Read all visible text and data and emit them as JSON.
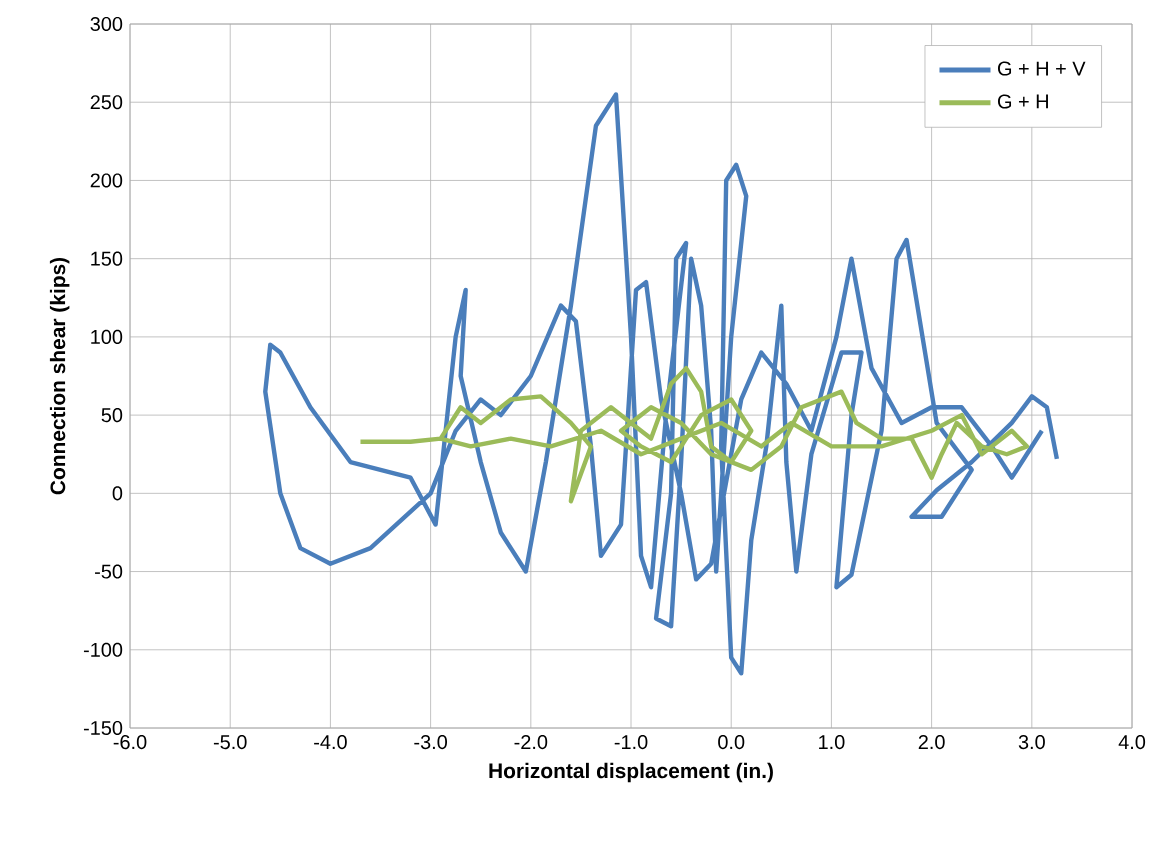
{
  "chart_data": {
    "type": "line",
    "xlabel": "Horizontal displacement (in.)",
    "ylabel": "Connection shear (kips)",
    "xlim": [
      -6,
      4
    ],
    "ylim": [
      -150,
      300
    ],
    "xticks": [
      {
        "value": -6,
        "label": "-6.0"
      },
      {
        "value": -5,
        "label": "-5.0"
      },
      {
        "value": -4,
        "label": "-4.0"
      },
      {
        "value": -3,
        "label": "-3.0"
      },
      {
        "value": -2,
        "label": "-2.0"
      },
      {
        "value": -1,
        "label": "-1.0"
      },
      {
        "value": 0,
        "label": "0.0"
      },
      {
        "value": 1,
        "label": "1.0"
      },
      {
        "value": 2,
        "label": "2.0"
      },
      {
        "value": 3,
        "label": "3.0"
      },
      {
        "value": 4,
        "label": "4.0"
      }
    ],
    "yticks": [
      -150,
      -100,
      -50,
      0,
      50,
      100,
      150,
      200,
      250,
      300
    ],
    "grid": true,
    "legend": "top right",
    "marker": "none",
    "line_style": "solid",
    "series": [
      {
        "name": "G + H + V",
        "color": "#4a7ebb",
        "x": [
          3.25,
          3.15,
          3.0,
          2.8,
          2.4,
          2.05,
          1.8,
          2.1,
          2.4,
          2.05,
          1.75,
          1.65,
          1.5,
          1.2,
          1.05,
          1.2,
          1.3,
          1.1,
          0.8,
          0.65,
          0.55,
          0.5,
          0.35,
          0.2,
          0.1,
          0.0,
          -0.1,
          -0.05,
          0.05,
          0.15,
          0.0,
          -0.15,
          -0.2,
          -0.3,
          -0.4,
          -0.5,
          -0.6,
          -0.75,
          -0.6,
          -0.55,
          -0.45,
          -0.65,
          -0.8,
          -0.9,
          -1.0,
          -1.15,
          -1.35,
          -1.6,
          -1.85,
          -2.05,
          -2.3,
          -2.5,
          -2.7,
          -2.65,
          -2.75,
          -2.9,
          -2.95,
          -3.2,
          -3.8,
          -4.2,
          -4.5,
          -4.6,
          -4.65,
          -4.5,
          -4.3,
          -4.0,
          -3.6,
          -3.0,
          -2.75,
          -2.5,
          -2.3,
          -2.0,
          -1.7,
          -1.55,
          -1.4,
          -1.3,
          -1.1,
          -0.95,
          -0.85,
          -0.7,
          -0.5,
          -0.35,
          -0.2,
          0.1,
          0.3,
          0.55,
          0.8,
          1.05,
          1.2,
          1.4,
          1.7,
          2.0,
          2.3,
          2.6,
          2.8,
          3.1
        ],
        "values": [
          22,
          55,
          62,
          45,
          20,
          2,
          -15,
          -15,
          15,
          45,
          162,
          150,
          40,
          -52,
          -60,
          50,
          90,
          90,
          25,
          -50,
          20,
          120,
          30,
          -30,
          -115,
          -105,
          30,
          200,
          210,
          190,
          100,
          -50,
          40,
          120,
          150,
          20,
          -85,
          -80,
          0,
          150,
          160,
          50,
          -60,
          -40,
          100,
          255,
          235,
          120,
          20,
          -50,
          -25,
          20,
          75,
          130,
          100,
          10,
          -20,
          10,
          20,
          55,
          90,
          95,
          65,
          0,
          -35,
          -45,
          -35,
          0,
          40,
          60,
          50,
          75,
          120,
          110,
          30,
          -40,
          -20,
          130,
          135,
          60,
          0,
          -55,
          -45,
          60,
          90,
          70,
          40,
          100,
          150,
          80,
          45,
          55,
          55,
          30,
          10,
          40
        ]
      },
      {
        "name": "G + H",
        "color": "#9bbb59",
        "x": [
          -3.7,
          -3.2,
          -2.9,
          -2.7,
          -2.5,
          -2.2,
          -1.9,
          -1.6,
          -1.4,
          -1.6,
          -1.5,
          -1.2,
          -1.0,
          -0.8,
          -0.6,
          -0.45,
          -0.3,
          -0.2,
          0.0,
          0.2,
          0.0,
          -0.3,
          -0.6,
          -0.9,
          -1.1,
          -0.8,
          -0.5,
          -0.2,
          0.2,
          0.5,
          0.7,
          0.9,
          1.1,
          1.25,
          1.5,
          1.8,
          2.0,
          2.1,
          2.25,
          2.5,
          2.75,
          2.95,
          2.8,
          2.5,
          2.3,
          2.0,
          1.5,
          1.0,
          0.6,
          0.3,
          -0.1,
          -0.5,
          -0.9,
          -1.3,
          -1.8,
          -2.2,
          -2.6,
          -2.9
        ],
        "values": [
          33,
          33,
          35,
          55,
          45,
          60,
          62,
          45,
          30,
          -5,
          40,
          55,
          45,
          35,
          70,
          80,
          65,
          30,
          20,
          40,
          60,
          50,
          20,
          30,
          40,
          55,
          45,
          25,
          15,
          30,
          55,
          60,
          65,
          45,
          35,
          35,
          10,
          25,
          45,
          30,
          25,
          30,
          40,
          25,
          50,
          40,
          30,
          30,
          45,
          30,
          45,
          35,
          25,
          40,
          30,
          35,
          30,
          35
        ]
      }
    ]
  }
}
